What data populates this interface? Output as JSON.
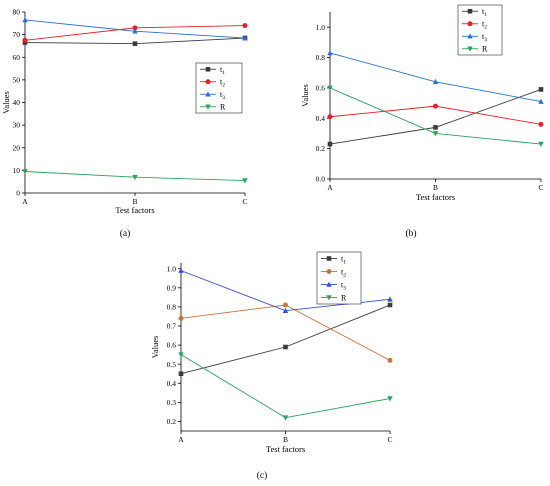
{
  "figure": {
    "labels": [
      "(a)",
      "(b)",
      "(c)"
    ]
  },
  "chart_data": [
    {
      "type": "line",
      "panel_label": "(a)",
      "categories": [
        "A",
        "B",
        "C"
      ],
      "xlabel": "Test factors",
      "ylabel": "Values",
      "ylim": [
        0,
        80
      ],
      "yticks": [
        "0",
        "10",
        "20",
        "30",
        "40",
        "50",
        "60",
        "70",
        "80"
      ],
      "legend_position": "right-middle",
      "series": [
        {
          "name": "t1",
          "name_base": "t",
          "name_sub": "1",
          "color": "#3a3a3a",
          "marker": "square",
          "values": [
            66.5,
            66.0,
            68.5
          ]
        },
        {
          "name": "t2",
          "name_base": "t",
          "name_sub": "2",
          "color": "#e8202a",
          "marker": "circle",
          "values": [
            67.5,
            73.0,
            74.0
          ]
        },
        {
          "name": "t3",
          "name_base": "t",
          "name_sub": "3",
          "color": "#2a6fd6",
          "marker": "triangle-up",
          "values": [
            76.5,
            71.5,
            68.5
          ]
        },
        {
          "name": "R",
          "name_base": "R",
          "name_sub": "",
          "color": "#2aa35a",
          "marker": "triangle-down",
          "values": [
            9.5,
            7.0,
            5.5
          ]
        }
      ]
    },
    {
      "type": "line",
      "panel_label": "(b)",
      "categories": [
        "A",
        "B",
        "C"
      ],
      "xlabel": "Test factors",
      "ylabel": "Values",
      "ylim": [
        0,
        1.1
      ],
      "yticks": [
        "0.0",
        "0.2",
        "0.4",
        "0.6",
        "0.8",
        "1.0"
      ],
      "legend_position": "top-right",
      "series": [
        {
          "name": "t1",
          "name_base": "t",
          "name_sub": "1",
          "color": "#3a3a3a",
          "marker": "square",
          "values": [
            0.23,
            0.34,
            0.59
          ]
        },
        {
          "name": "t2",
          "name_base": "t",
          "name_sub": "2",
          "color": "#e8202a",
          "marker": "circle",
          "values": [
            0.41,
            0.48,
            0.36
          ]
        },
        {
          "name": "t3",
          "name_base": "t",
          "name_sub": "3",
          "color": "#2a6fd6",
          "marker": "triangle-up",
          "values": [
            0.83,
            0.64,
            0.51
          ]
        },
        {
          "name": "R",
          "name_base": "R",
          "name_sub": "",
          "color": "#2aa35a",
          "marker": "triangle-down",
          "values": [
            0.6,
            0.3,
            0.23
          ]
        }
      ]
    },
    {
      "type": "line",
      "panel_label": "(c)",
      "categories": [
        "A",
        "B",
        "C"
      ],
      "xlabel": "Test factors",
      "ylabel": "Values",
      "ylim": [
        0.15,
        1.03
      ],
      "yticks": [
        "0.2",
        "0.3",
        "0.4",
        "0.5",
        "0.6",
        "0.7",
        "0.8",
        "0.9",
        "1.0"
      ],
      "legend_position": "top-right",
      "series": [
        {
          "name": "t1",
          "name_base": "t",
          "name_sub": "1",
          "color": "#3a3a3a",
          "marker": "square",
          "values": [
            0.45,
            0.59,
            0.81
          ]
        },
        {
          "name": "t2",
          "name_base": "t",
          "name_sub": "2",
          "color": "#c8743a",
          "marker": "circle",
          "values": [
            0.74,
            0.81,
            0.52
          ]
        },
        {
          "name": "t3",
          "name_base": "t",
          "name_sub": "3",
          "color": "#3a4fd6",
          "marker": "triangle-up",
          "values": [
            0.99,
            0.78,
            0.84
          ]
        },
        {
          "name": "R",
          "name_base": "R",
          "name_sub": "",
          "color": "#2aa35a",
          "marker": "triangle-down",
          "values": [
            0.55,
            0.22,
            0.32
          ]
        }
      ]
    }
  ]
}
